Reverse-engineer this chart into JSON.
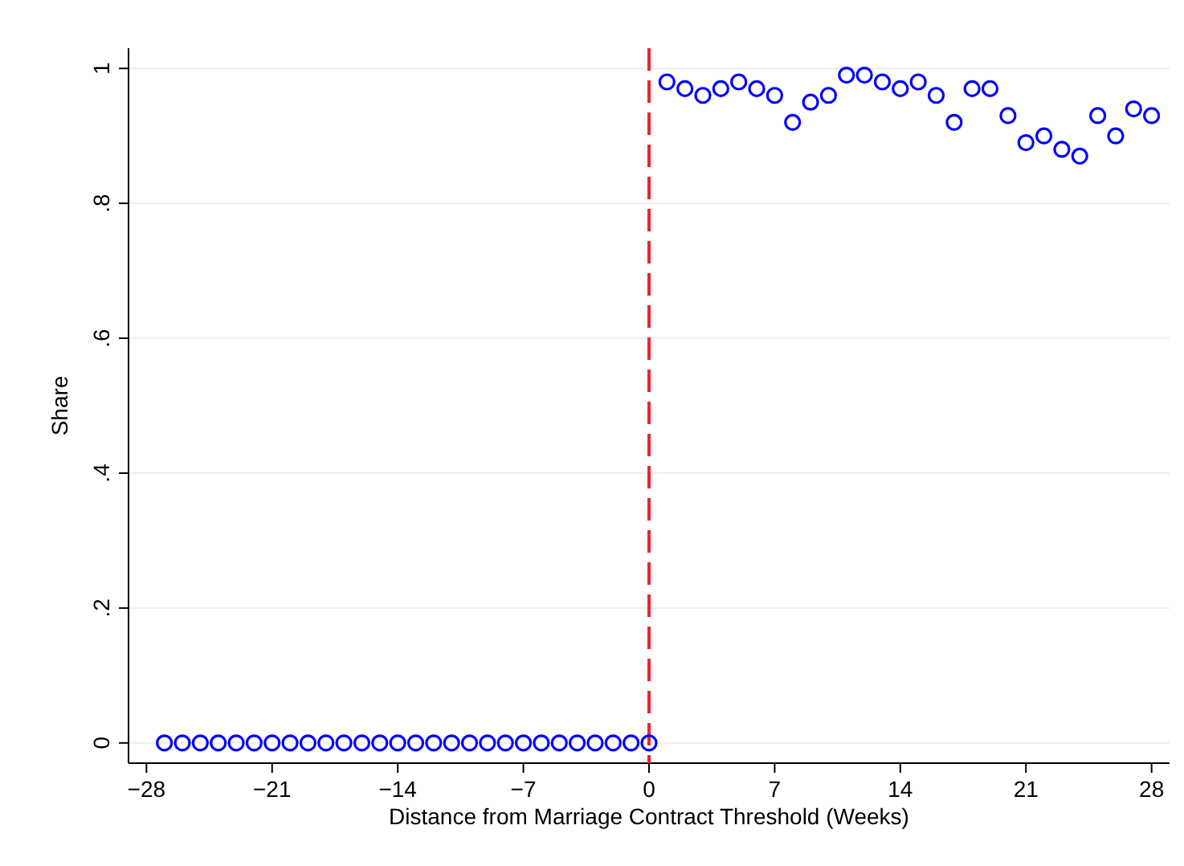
{
  "chart_data": {
    "type": "scatter",
    "xlabel": "Distance from Marriage Contract Threshold (Weeks)",
    "ylabel": "Share",
    "x": [
      -27,
      -26,
      -25,
      -24,
      -23,
      -22,
      -21,
      -20,
      -19,
      -18,
      -17,
      -16,
      -15,
      -14,
      -13,
      -12,
      -11,
      -10,
      -9,
      -8,
      -7,
      -6,
      -5,
      -4,
      -3,
      -2,
      -1,
      0,
      1,
      2,
      3,
      4,
      5,
      6,
      7,
      8,
      9,
      10,
      11,
      12,
      13,
      14,
      15,
      16,
      17,
      18,
      19,
      20,
      21,
      22,
      23,
      24,
      25,
      26,
      27,
      28
    ],
    "series": [
      {
        "color": "#0000ff",
        "values": [
          0,
          0,
          0,
          0,
          0,
          0,
          0,
          0,
          0,
          0,
          0,
          0,
          0,
          0,
          0,
          0,
          0,
          0,
          0,
          0,
          0,
          0,
          0,
          0,
          0,
          0,
          0,
          0,
          0.98,
          0.97,
          0.96,
          0.97,
          0.98,
          0.97,
          0.96,
          0.92,
          0.95,
          0.96,
          0.99,
          0.99,
          0.98,
          0.97,
          0.98,
          0.96,
          0.92,
          0.97,
          0.97,
          0.93,
          0.89,
          0.9,
          0.88,
          0.87,
          0.93,
          0.9,
          0.94,
          0.93
        ]
      }
    ],
    "xlim": [
      -29,
      29
    ],
    "ylim": [
      -0.03,
      1.03
    ],
    "xticks": [
      {
        "value": -28,
        "label": "−28"
      },
      {
        "value": -21,
        "label": "−21"
      },
      {
        "value": -14,
        "label": "−14"
      },
      {
        "value": -7,
        "label": "−7"
      },
      0,
      7,
      14,
      21,
      28
    ],
    "yticks": [
      0,
      {
        "value": 0.2,
        "label": ".2"
      },
      {
        "value": 0.4,
        "label": ".4"
      },
      {
        "value": 0.6,
        "label": ".6"
      },
      {
        "value": 0.8,
        "label": ".8"
      },
      1
    ],
    "grid": "y",
    "marker": "circle",
    "ref_lines": [
      {
        "axis": "x",
        "value": 0,
        "color": "#e8262d",
        "line_style": "dashed"
      }
    ]
  }
}
